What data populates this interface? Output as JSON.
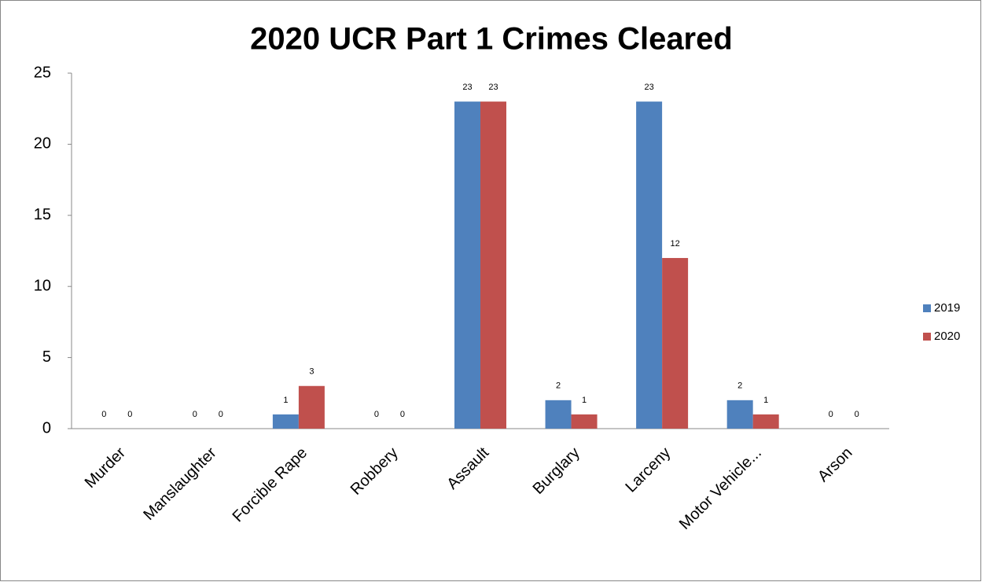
{
  "chart_data": {
    "type": "bar",
    "title": "2020 UCR Part 1 Crimes Cleared",
    "categories": [
      "Murder",
      "Manslaughter",
      "Forcible Rape",
      "Robbery",
      "Assault",
      "Burglary",
      "Larceny",
      "Motor Vehicle...",
      "Arson"
    ],
    "series": [
      {
        "name": "2019",
        "color": "#4f81bd",
        "values": [
          0,
          0,
          1,
          0,
          23,
          2,
          23,
          2,
          0
        ]
      },
      {
        "name": "2020",
        "color": "#c0504d",
        "values": [
          0,
          0,
          3,
          0,
          23,
          1,
          12,
          1,
          0
        ]
      }
    ],
    "ylim": [
      0,
      25
    ],
    "yticks": [
      0,
      5,
      10,
      15,
      20,
      25
    ],
    "grid": false,
    "legend": "right"
  }
}
